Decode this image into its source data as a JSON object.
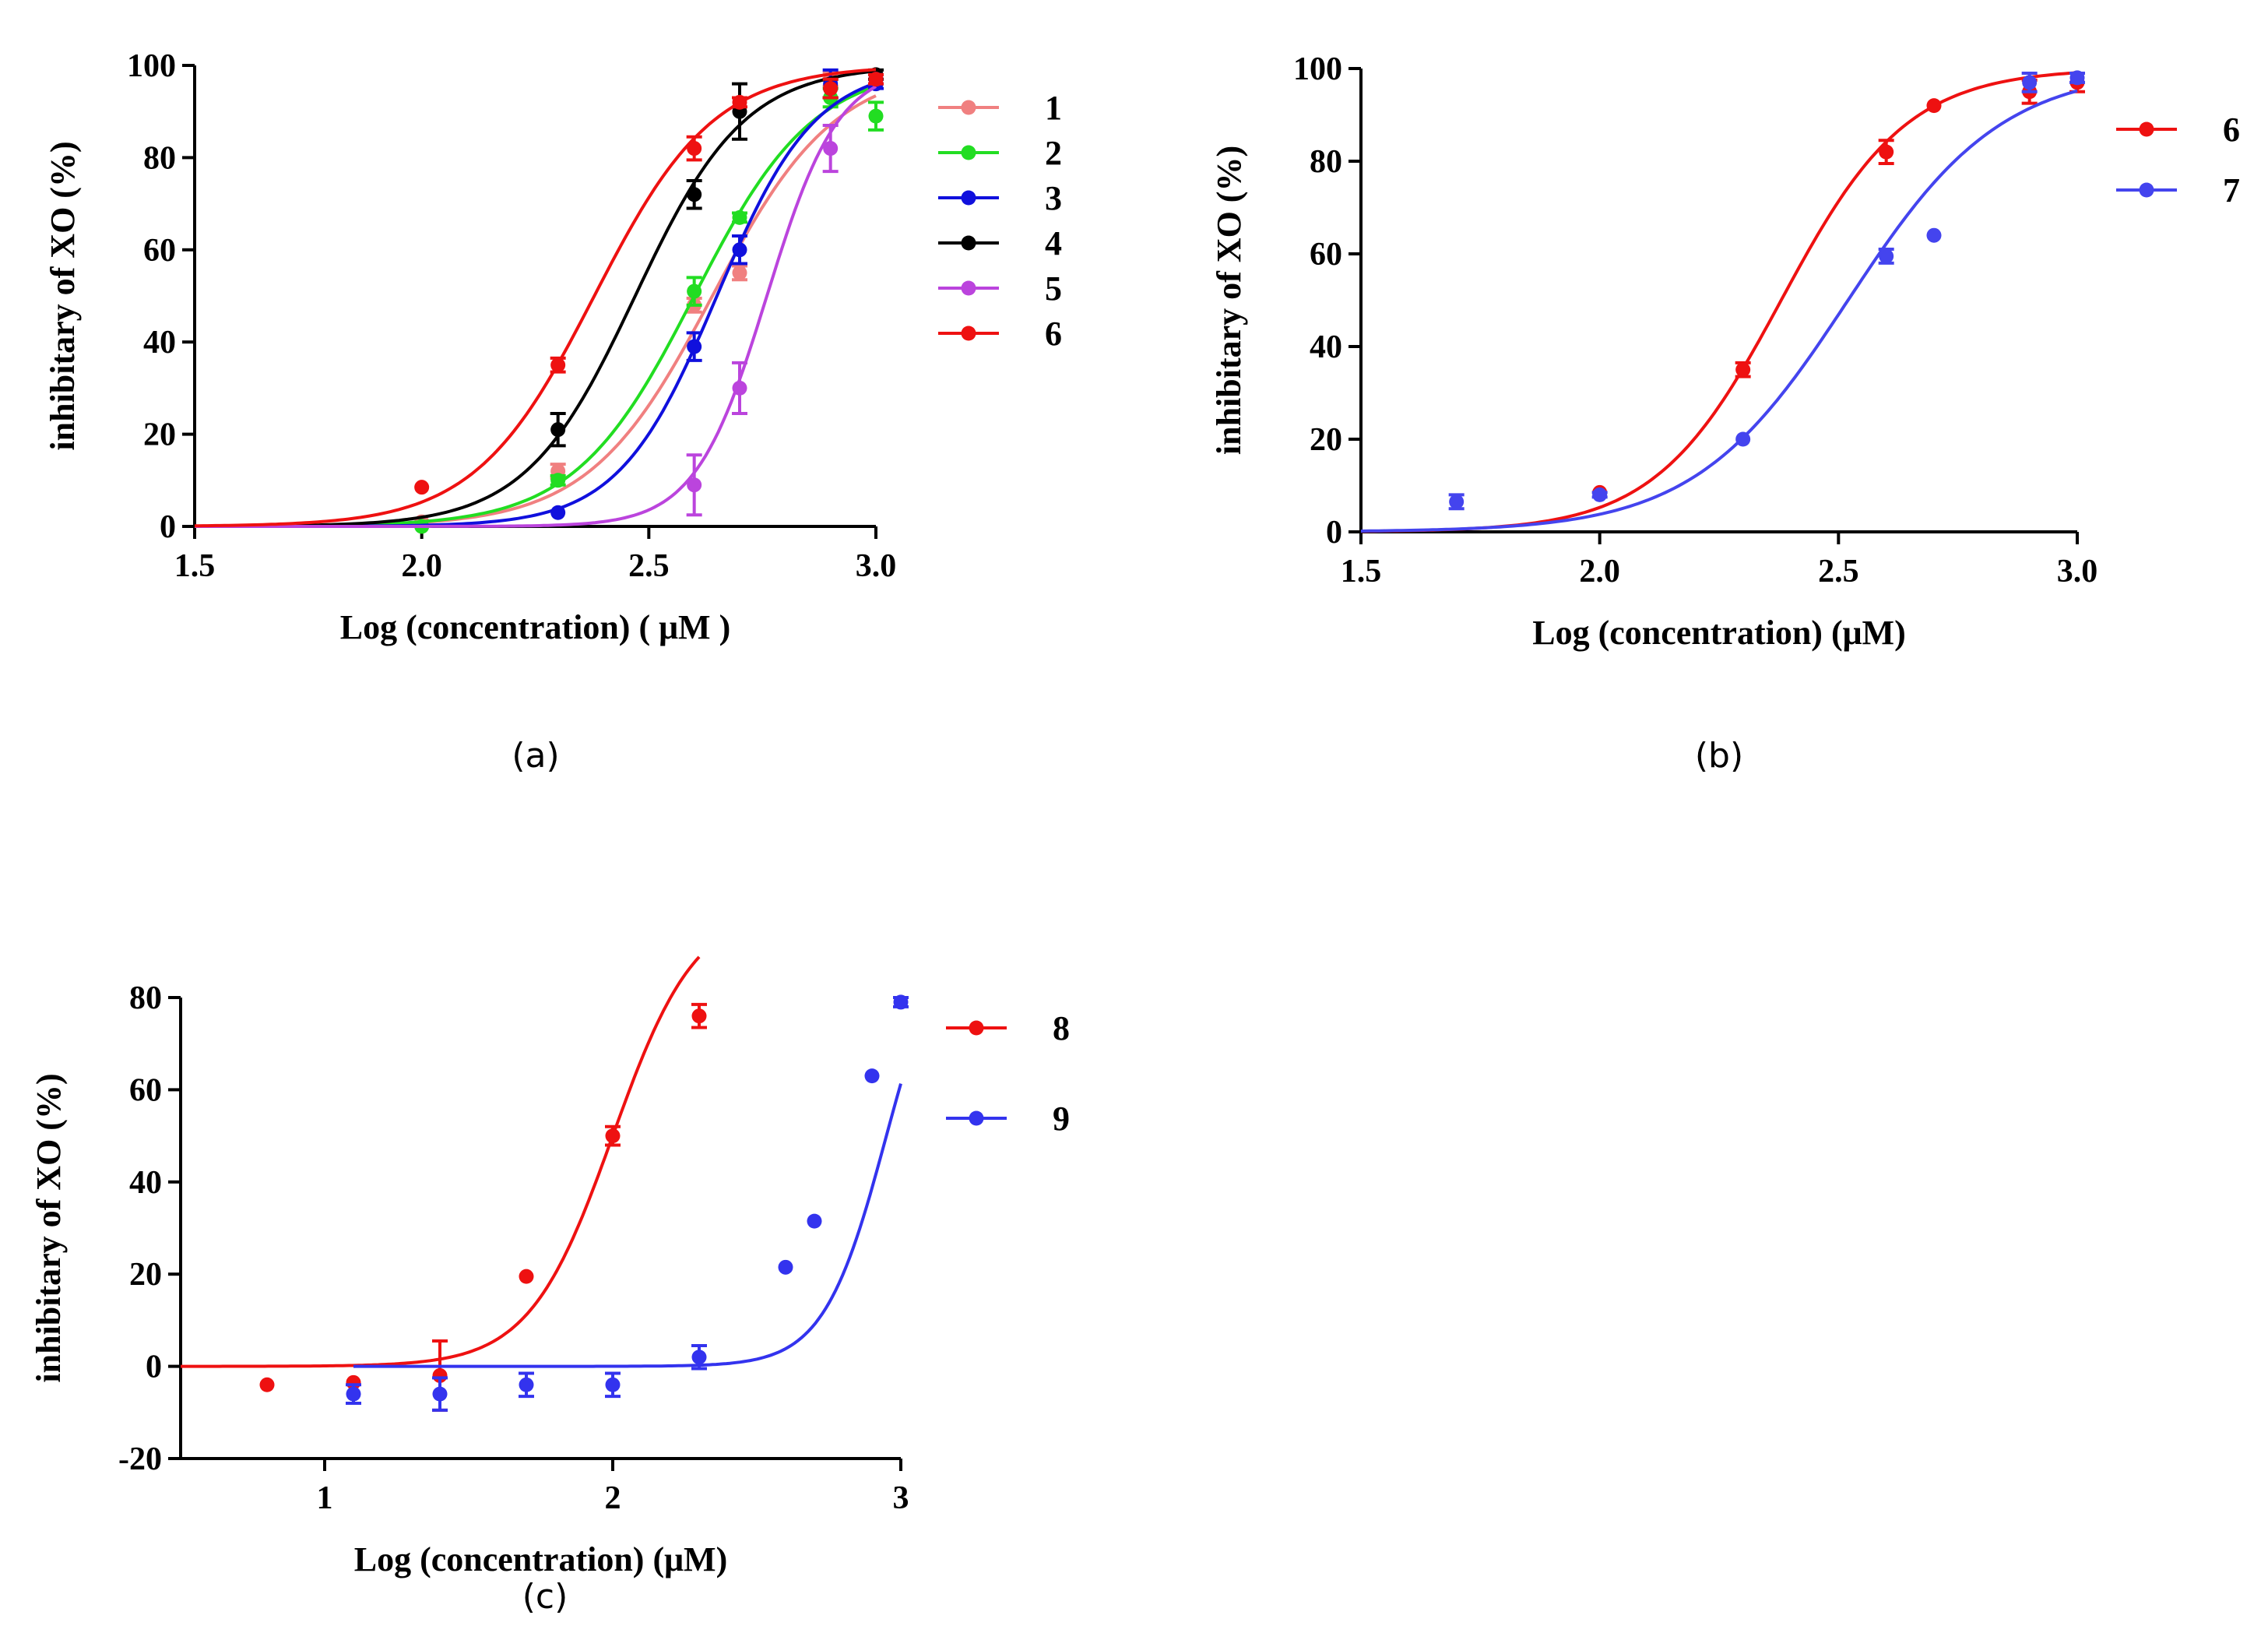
{
  "chart_data": [
    {
      "id": "a",
      "type": "line",
      "caption": "(a)",
      "xlabel": "Log (concentration) ( μM )",
      "ylabel": "inhibitary of XO (%)",
      "xlim": [
        1.5,
        3.0
      ],
      "ylim": [
        0,
        100
      ],
      "xticks": [
        1.5,
        2.0,
        2.5,
        3.0
      ],
      "xtick_labels": [
        "1.5",
        "2.0",
        "2.5",
        "3.0"
      ],
      "yticks": [
        0,
        20,
        40,
        60,
        80,
        100
      ],
      "ytick_labels": [
        "0",
        "20",
        "40",
        "60",
        "80",
        "100"
      ],
      "legend_position": "right",
      "series": [
        {
          "name": "1",
          "color": "#f08080",
          "logIC50": 2.64,
          "hill": 3.2,
          "curve_range": [
            1.5,
            3.0
          ],
          "points": [
            {
              "x": 2.0,
              "y": 1,
              "err": 0
            },
            {
              "x": 2.3,
              "y": 12,
              "err": 1.5
            },
            {
              "x": 2.6,
              "y": 48,
              "err": 1.5
            },
            {
              "x": 2.7,
              "y": 55,
              "err": 1.5
            },
            {
              "x": 2.9,
              "y": 97,
              "err": 1.5
            },
            {
              "x": 3.0,
              "y": 97,
              "err": 1
            }
          ]
        },
        {
          "name": "2",
          "color": "#22dd22",
          "logIC50": 2.6,
          "hill": 3.3,
          "curve_range": [
            1.5,
            3.0
          ],
          "points": [
            {
              "x": 2.0,
              "y": 0,
              "err": 0
            },
            {
              "x": 2.3,
              "y": 10,
              "err": 1
            },
            {
              "x": 2.6,
              "y": 51,
              "err": 3
            },
            {
              "x": 2.7,
              "y": 67,
              "err": 1
            },
            {
              "x": 2.9,
              "y": 93,
              "err": 2
            },
            {
              "x": 3.0,
              "y": 89,
              "err": 3
            }
          ]
        },
        {
          "name": "3",
          "color": "#1010dd",
          "logIC50": 2.65,
          "hill": 4.0,
          "curve_range": [
            1.5,
            3.0
          ],
          "points": [
            {
              "x": 2.3,
              "y": 3,
              "err": 0
            },
            {
              "x": 2.6,
              "y": 39,
              "err": 3
            },
            {
              "x": 2.7,
              "y": 60,
              "err": 3
            },
            {
              "x": 2.9,
              "y": 96,
              "err": 3
            },
            {
              "x": 3.0,
              "y": 96,
              "err": 1
            }
          ]
        },
        {
          "name": "4",
          "color": "#000000",
          "logIC50": 2.47,
          "hill": 3.6,
          "curve_range": [
            1.5,
            3.0
          ],
          "points": [
            {
              "x": 2.3,
              "y": 21,
              "err": 3.5
            },
            {
              "x": 2.6,
              "y": 72,
              "err": 3
            },
            {
              "x": 2.7,
              "y": 90,
              "err": 6
            },
            {
              "x": 2.9,
              "y": 95,
              "err": 2
            },
            {
              "x": 3.0,
              "y": 98,
              "err": 1
            }
          ]
        },
        {
          "name": "5",
          "color": "#bb44dd",
          "logIC50": 2.76,
          "hill": 5.5,
          "curve_range": [
            1.5,
            3.0
          ],
          "points": [
            {
              "x": 2.6,
              "y": 9,
              "err": 6.5
            },
            {
              "x": 2.7,
              "y": 30,
              "err": 5.5
            },
            {
              "x": 2.9,
              "y": 82,
              "err": 5
            },
            {
              "x": 3.0,
              "y": 97,
              "err": 1
            }
          ]
        },
        {
          "name": "6",
          "color": "#ee1111",
          "logIC50": 2.38,
          "hill": 3.3,
          "curve_range": [
            1.5,
            3.0
          ],
          "points": [
            {
              "x": 2.0,
              "y": 8.5,
              "err": 0
            },
            {
              "x": 2.3,
              "y": 35,
              "err": 1.5
            },
            {
              "x": 2.6,
              "y": 82,
              "err": 2.5
            },
            {
              "x": 2.7,
              "y": 92,
              "err": 1
            },
            {
              "x": 2.9,
              "y": 95,
              "err": 2
            },
            {
              "x": 3.0,
              "y": 97,
              "err": 1
            }
          ]
        }
      ]
    },
    {
      "id": "b",
      "type": "line",
      "caption": "(b)",
      "xlabel": "Log (concentration) (μM)",
      "ylabel": "inhibitary of XO (%)",
      "xlim": [
        1.5,
        3.0
      ],
      "ylim": [
        0,
        100
      ],
      "xticks": [
        1.5,
        2.0,
        2.5,
        3.0
      ],
      "xtick_labels": [
        "1.5",
        "2.0",
        "2.5",
        "3.0"
      ],
      "yticks": [
        0,
        20,
        40,
        60,
        80,
        100
      ],
      "ytick_labels": [
        "0",
        "20",
        "40",
        "60",
        "80",
        "100"
      ],
      "legend_position": "right",
      "series": [
        {
          "name": "6",
          "color": "#ee1111",
          "logIC50": 2.38,
          "hill": 3.3,
          "curve_range": [
            1.5,
            3.0
          ],
          "points": [
            {
              "x": 2.0,
              "y": 8.5,
              "err": 0
            },
            {
              "x": 2.3,
              "y": 35,
              "err": 1.5
            },
            {
              "x": 2.6,
              "y": 82,
              "err": 2.5
            },
            {
              "x": 2.7,
              "y": 92,
              "err": 0
            },
            {
              "x": 2.9,
              "y": 95,
              "err": 2.5
            },
            {
              "x": 3.0,
              "y": 97,
              "err": 2
            }
          ]
        },
        {
          "name": "7",
          "color": "#4444ee",
          "logIC50": 2.52,
          "hill": 2.7,
          "curve_range": [
            1.5,
            3.0
          ],
          "points": [
            {
              "x": 1.7,
              "y": 6.5,
              "err": 1.5
            },
            {
              "x": 2.0,
              "y": 8,
              "err": 0.5
            },
            {
              "x": 2.3,
              "y": 20,
              "err": 0
            },
            {
              "x": 2.6,
              "y": 59.5,
              "err": 1.5
            },
            {
              "x": 2.7,
              "y": 64,
              "err": 0
            },
            {
              "x": 2.9,
              "y": 97,
              "err": 2
            },
            {
              "x": 3.0,
              "y": 98,
              "err": 1
            }
          ]
        }
      ]
    },
    {
      "id": "c",
      "type": "line",
      "caption": "(c)",
      "xlabel": "Log (concentration) (μM)",
      "ylabel": "inhibitary of XO (%)",
      "xlim": [
        0.5,
        3.0
      ],
      "ylim": [
        -20,
        80
      ],
      "xticks": [
        1,
        2,
        3
      ],
      "xtick_labels": [
        "1",
        "2",
        "3"
      ],
      "yticks": [
        -20,
        0,
        20,
        40,
        60,
        80
      ],
      "ytick_labels": [
        "-20",
        "0",
        "20",
        "40",
        "60",
        "80"
      ],
      "legend_position": "right",
      "series": [
        {
          "name": "8",
          "color": "#ee1111",
          "logIC50": 2.0,
          "hill": 3.0,
          "top": 100,
          "curve_range": [
            0.5,
            2.3
          ],
          "points": [
            {
              "x": 0.8,
              "y": -4,
              "err": 0
            },
            {
              "x": 1.1,
              "y": -3.5,
              "err": 0
            },
            {
              "x": 1.4,
              "y": -2,
              "err": 7.5
            },
            {
              "x": 1.7,
              "y": 19.5,
              "err": 0
            },
            {
              "x": 2.0,
              "y": 50,
              "err": 2
            },
            {
              "x": 2.3,
              "y": 76,
              "err": 2.5
            }
          ]
        },
        {
          "name": "9",
          "color": "#3333ee",
          "logIC50": 2.95,
          "hill": 4.0,
          "top": 100,
          "curve_range": [
            1.1,
            3.0
          ],
          "points": [
            {
              "x": 1.1,
              "y": -6,
              "err": 2
            },
            {
              "x": 1.4,
              "y": -6,
              "err": 3.5
            },
            {
              "x": 1.7,
              "y": -4,
              "err": 2.5
            },
            {
              "x": 2.0,
              "y": -4,
              "err": 2.5
            },
            {
              "x": 2.3,
              "y": 2,
              "err": 2.5
            },
            {
              "x": 2.6,
              "y": 21.5,
              "err": 0
            },
            {
              "x": 2.7,
              "y": 31.5,
              "err": 0
            },
            {
              "x": 2.9,
              "y": 63,
              "err": 0
            },
            {
              "x": 3.0,
              "y": 79,
              "err": 1
            }
          ]
        }
      ]
    }
  ]
}
